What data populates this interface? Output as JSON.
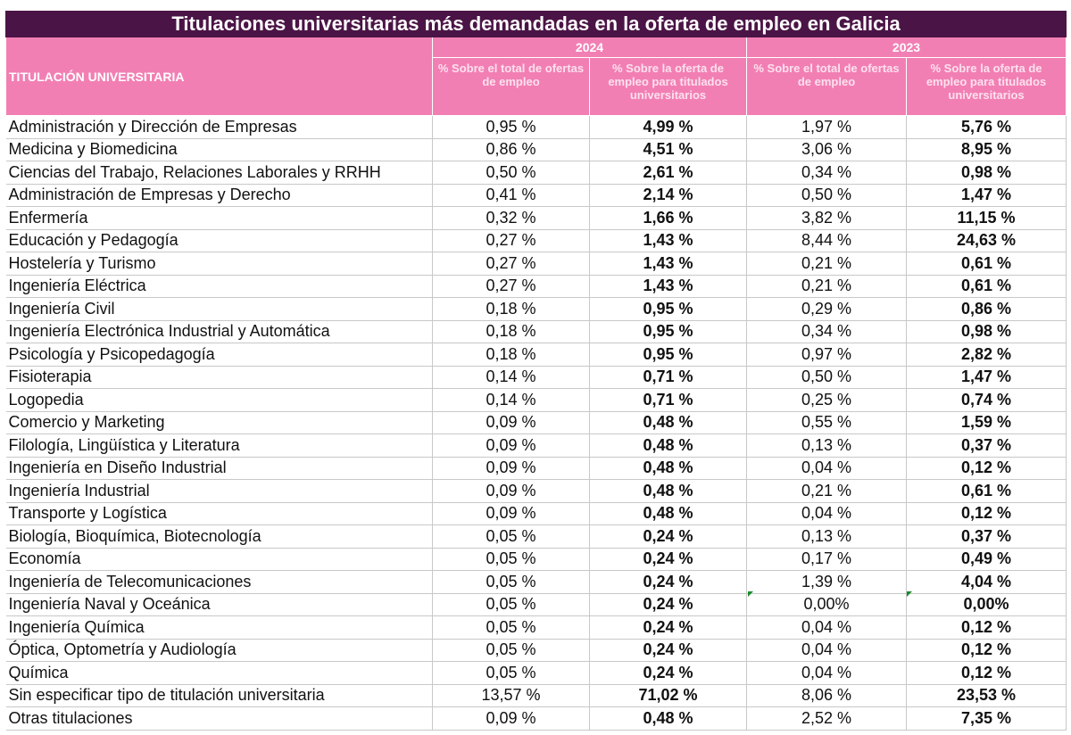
{
  "title": "Titulaciones universitarias más demandadas en la oferta de empleo en Galicia",
  "header": {
    "label_column": "TITULACIÓN UNIVERSITARIA",
    "years": [
      "2024",
      "2023"
    ],
    "col_total": "% Sobre el total de ofertas de empleo",
    "col_titulados": "% Sobre la oferta de empleo para titulados universitarios"
  },
  "rows": [
    {
      "name": "Administración y Dirección de Empresas",
      "v2024_total": "0,95 %",
      "v2024_tit": "4,99 %",
      "v2023_total": "1,97 %",
      "v2023_tit": "5,76 %"
    },
    {
      "name": "Medicina y Biomedicina",
      "v2024_total": "0,86 %",
      "v2024_tit": "4,51 %",
      "v2023_total": "3,06 %",
      "v2023_tit": "8,95 %"
    },
    {
      "name": "Ciencias del Trabajo, Relaciones Laborales y RRHH",
      "v2024_total": "0,50 %",
      "v2024_tit": "2,61 %",
      "v2023_total": "0,34 %",
      "v2023_tit": "0,98 %"
    },
    {
      "name": "Administración de Empresas y Derecho",
      "v2024_total": "0,41 %",
      "v2024_tit": "2,14 %",
      "v2023_total": "0,50 %",
      "v2023_tit": "1,47 %"
    },
    {
      "name": "Enfermería",
      "v2024_total": "0,32 %",
      "v2024_tit": "1,66 %",
      "v2023_total": "3,82 %",
      "v2023_tit": "11,15 %"
    },
    {
      "name": "Educación y Pedagogía",
      "v2024_total": "0,27 %",
      "v2024_tit": "1,43 %",
      "v2023_total": "8,44 %",
      "v2023_tit": "24,63 %"
    },
    {
      "name": "Hostelería y Turismo",
      "v2024_total": "0,27 %",
      "v2024_tit": "1,43 %",
      "v2023_total": "0,21 %",
      "v2023_tit": "0,61 %"
    },
    {
      "name": "Ingeniería Eléctrica",
      "v2024_total": "0,27 %",
      "v2024_tit": "1,43 %",
      "v2023_total": "0,21 %",
      "v2023_tit": "0,61 %"
    },
    {
      "name": "Ingeniería Civil",
      "v2024_total": "0,18 %",
      "v2024_tit": "0,95 %",
      "v2023_total": "0,29 %",
      "v2023_tit": "0,86 %"
    },
    {
      "name": "Ingeniería Electrónica Industrial y Automática",
      "v2024_total": "0,18 %",
      "v2024_tit": "0,95 %",
      "v2023_total": "0,34 %",
      "v2023_tit": "0,98 %"
    },
    {
      "name": "Psicología y Psicopedagogía",
      "v2024_total": "0,18 %",
      "v2024_tit": "0,95 %",
      "v2023_total": "0,97 %",
      "v2023_tit": "2,82 %"
    },
    {
      "name": "Fisioterapia",
      "v2024_total": "0,14 %",
      "v2024_tit": "0,71 %",
      "v2023_total": "0,50 %",
      "v2023_tit": "1,47 %"
    },
    {
      "name": "Logopedia",
      "v2024_total": "0,14 %",
      "v2024_tit": "0,71 %",
      "v2023_total": "0,25 %",
      "v2023_tit": "0,74 %"
    },
    {
      "name": "Comercio y Marketing",
      "v2024_total": "0,09 %",
      "v2024_tit": "0,48 %",
      "v2023_total": "0,55 %",
      "v2023_tit": "1,59 %"
    },
    {
      "name": "Filología, Lingüística y Literatura",
      "v2024_total": "0,09 %",
      "v2024_tit": "0,48 %",
      "v2023_total": "0,13 %",
      "v2023_tit": "0,37 %"
    },
    {
      "name": "Ingeniería en Diseño Industrial",
      "v2024_total": "0,09 %",
      "v2024_tit": "0,48 %",
      "v2023_total": "0,04 %",
      "v2023_tit": "0,12 %"
    },
    {
      "name": "Ingeniería Industrial",
      "v2024_total": "0,09 %",
      "v2024_tit": "0,48 %",
      "v2023_total": "0,21 %",
      "v2023_tit": "0,61 %"
    },
    {
      "name": "Transporte y Logística",
      "v2024_total": "0,09 %",
      "v2024_tit": "0,48 %",
      "v2023_total": "0,04 %",
      "v2023_tit": "0,12 %"
    },
    {
      "name": "Biología, Bioquímica, Biotecnología",
      "v2024_total": "0,05 %",
      "v2024_tit": "0,24 %",
      "v2023_total": "0,13 %",
      "v2023_tit": "0,37 %"
    },
    {
      "name": "Economía",
      "v2024_total": "0,05 %",
      "v2024_tit": "0,24 %",
      "v2023_total": "0,17 %",
      "v2023_tit": "0,49 %"
    },
    {
      "name": "Ingeniería de Telecomunicaciones",
      "v2024_total": "0,05 %",
      "v2024_tit": "0,24 %",
      "v2023_total": "1,39 %",
      "v2023_tit": "4,04 %"
    },
    {
      "name": "Ingeniería Naval y Oceánica",
      "v2024_total": "0,05 %",
      "v2024_tit": "0,24 %",
      "v2023_total": "0,00%",
      "v2023_tit": "0,00%"
    },
    {
      "name": "Ingeniería Química",
      "v2024_total": "0,05 %",
      "v2024_tit": "0,24 %",
      "v2023_total": "0,04 %",
      "v2023_tit": "0,12 %"
    },
    {
      "name": "Óptica, Optometría y Audiología",
      "v2024_total": "0,05 %",
      "v2024_tit": "0,24 %",
      "v2023_total": "0,04 %",
      "v2023_tit": "0,12 %"
    },
    {
      "name": "Química",
      "v2024_total": "0,05 %",
      "v2024_tit": "0,24 %",
      "v2023_total": "0,04 %",
      "v2023_tit": "0,12 %"
    },
    {
      "name": "Sin especificar tipo de titulación universitaria",
      "v2024_total": "13,57 %",
      "v2024_tit": "71,02 %",
      "v2023_total": "8,06 %",
      "v2023_tit": "23,53 %"
    },
    {
      "name": "Otras titulaciones",
      "v2024_total": "0,09 %",
      "v2024_tit": "0,48 %",
      "v2023_total": "2,52 %",
      "v2023_tit": "7,35 %"
    }
  ],
  "colors": {
    "title_bg": "#4b1446",
    "header_bg": "#f27fb4",
    "marker": "#1a8a2a"
  }
}
